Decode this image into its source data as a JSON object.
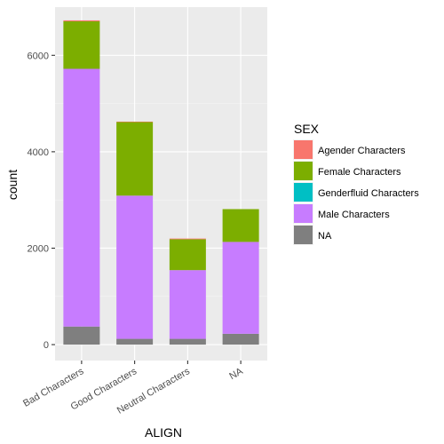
{
  "chart_data": {
    "type": "bar",
    "stacked": true,
    "xlabel": "ALIGN",
    "ylabel": "count",
    "categories": [
      "Bad Characters",
      "Good Characters",
      "Neutral Characters",
      "NA"
    ],
    "ylim": [
      -330,
      7000
    ],
    "yticks": [
      0,
      2000,
      4000,
      6000
    ],
    "ytick_labels": [
      "0",
      "2000",
      "4000",
      "6000"
    ],
    "grid": true,
    "series": [
      {
        "name": "NA",
        "color": "#7F7F7F",
        "values": [
          375,
          120,
          120,
          225
        ]
      },
      {
        "name": "Male Characters",
        "color": "#C77CFF",
        "values": [
          5345,
          2970,
          1425,
          1905
        ]
      },
      {
        "name": "Genderfluid Characters",
        "color": "#00BFC4",
        "values": [
          0,
          0,
          0,
          0
        ]
      },
      {
        "name": "Female Characters",
        "color": "#7CAE00",
        "values": [
          985,
          1525,
          640,
          680
        ]
      },
      {
        "name": "Agender Characters",
        "color": "#F8766D",
        "values": [
          20,
          10,
          15,
          0
        ]
      }
    ],
    "legend": {
      "title": "SEX",
      "position": "right",
      "entries": [
        {
          "label": "Agender Characters",
          "color": "#F8766D"
        },
        {
          "label": "Female Characters",
          "color": "#7CAE00"
        },
        {
          "label": "Genderfluid Characters",
          "color": "#00BFC4"
        },
        {
          "label": "Male Characters",
          "color": "#C77CFF"
        },
        {
          "label": "NA",
          "color": "#7F7F7F"
        }
      ]
    }
  }
}
